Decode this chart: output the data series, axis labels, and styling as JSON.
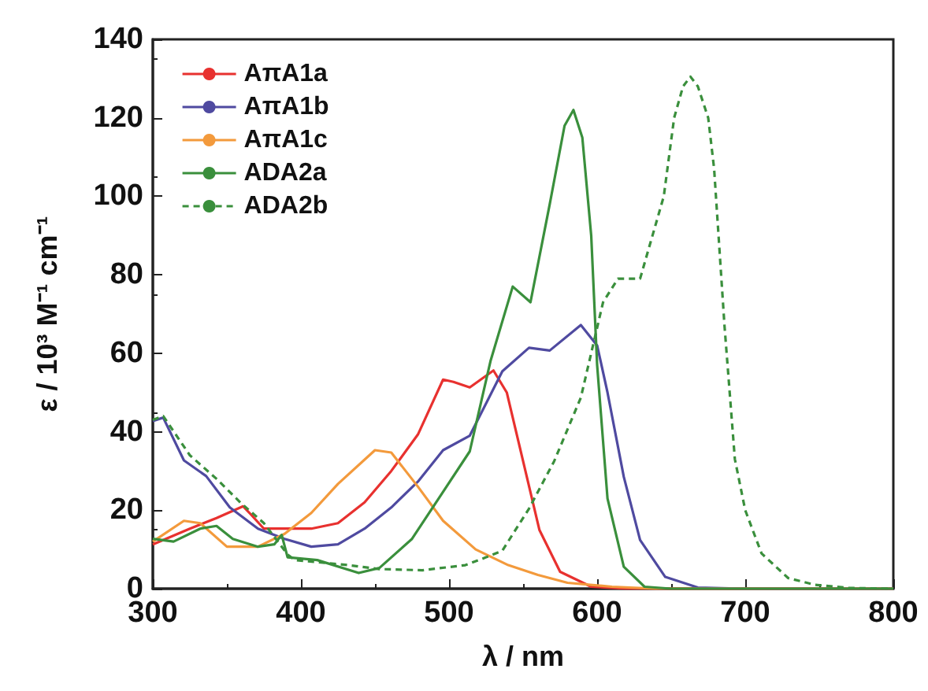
{
  "chart_data": {
    "type": "line",
    "xlabel": "λ / nm",
    "ylabel": "ε / 10³ M⁻¹ cm⁻¹",
    "xlim": [
      300,
      800
    ],
    "xticks": [
      300,
      400,
      500,
      600,
      700,
      800
    ],
    "ylim": [
      0,
      140
    ],
    "yticks": [
      0,
      20,
      40,
      60,
      80,
      100,
      120,
      140
    ],
    "grid": false,
    "legend": "top left",
    "marker": "none",
    "series": [
      {
        "name": "AπA1a",
        "color": "#e8312f",
        "line_style": "solid",
        "x": [
          300,
          325,
          343,
          361,
          366,
          375,
          407,
          425,
          443,
          461,
          479,
          496,
          503,
          514,
          530,
          539,
          550,
          561,
          575,
          596,
          620,
          800
        ],
        "values": [
          11.3,
          15.3,
          18,
          21,
          19,
          15.3,
          15.3,
          16.7,
          22,
          30,
          39.3,
          53.3,
          52.7,
          51.3,
          55.6,
          50,
          32.5,
          15,
          4.3,
          0.5,
          0,
          0
        ]
      },
      {
        "name": "AπA1b",
        "color": "#4f4aa0",
        "line_style": "solid",
        "x": [
          300,
          307,
          321,
          336,
          352,
          371,
          389,
          407,
          425,
          443,
          461,
          479,
          496,
          514,
          536,
          554,
          568,
          589,
          600,
          607,
          618,
          629,
          646,
          668,
          700,
          800
        ],
        "values": [
          42.7,
          43.6,
          32.7,
          28.7,
          20.7,
          15.3,
          12.7,
          10.7,
          11.3,
          15.3,
          20.7,
          27.3,
          35.3,
          39,
          55.4,
          61.4,
          60.7,
          67.2,
          62,
          50,
          28.5,
          12.4,
          3,
          0.3,
          0,
          0
        ]
      },
      {
        "name": "AπA1c",
        "color": "#f39a3c",
        "line_style": "solid",
        "x": [
          300,
          321,
          332,
          350,
          371,
          389,
          407,
          425,
          450,
          461,
          479,
          496,
          518,
          540,
          560,
          580,
          610,
          640,
          800
        ],
        "values": [
          12,
          17.3,
          16.7,
          10.7,
          10.7,
          14,
          19.3,
          26.7,
          35.3,
          34.7,
          26,
          17.3,
          10,
          6,
          3.5,
          1.5,
          0.5,
          0,
          0
        ]
      },
      {
        "name": "ADA2a",
        "color": "#3a8f3c",
        "line_style": "solid",
        "x": [
          300,
          314,
          332,
          343,
          354,
          371,
          382,
          387,
          391,
          411,
          439,
          453,
          475,
          496,
          514,
          528,
          543,
          555,
          568,
          578,
          584,
          590,
          596,
          600,
          607,
          618,
          632,
          650,
          800
        ],
        "values": [
          12.7,
          12,
          15.3,
          16,
          12.7,
          10.7,
          11.3,
          13.7,
          8,
          7.3,
          4,
          5.3,
          12.7,
          24.7,
          35,
          58,
          77,
          73,
          98,
          118,
          122,
          115,
          90,
          57,
          23,
          5.6,
          0.5,
          0,
          0
        ]
      },
      {
        "name": "ADA2b",
        "color": "#3a8f3c",
        "line_style": "dashed",
        "x": [
          300,
          307,
          325,
          343,
          359,
          375,
          391,
          396,
          432,
          453,
          482,
          511,
          525,
          536,
          554,
          571,
          589,
          604,
          614,
          629,
          645,
          652,
          658,
          663,
          668,
          675,
          679,
          686,
          693,
          700,
          711,
          729,
          747,
          770,
          800
        ],
        "values": [
          43,
          44,
          34,
          28,
          22,
          16.7,
          8.7,
          7.3,
          6,
          5,
          4.7,
          6,
          8,
          9.7,
          20.4,
          32.5,
          48.7,
          73,
          79,
          79,
          100,
          120,
          128,
          130.5,
          128,
          120,
          107,
          67,
          33,
          20,
          9,
          2.7,
          1,
          0.2,
          0
        ]
      }
    ]
  }
}
